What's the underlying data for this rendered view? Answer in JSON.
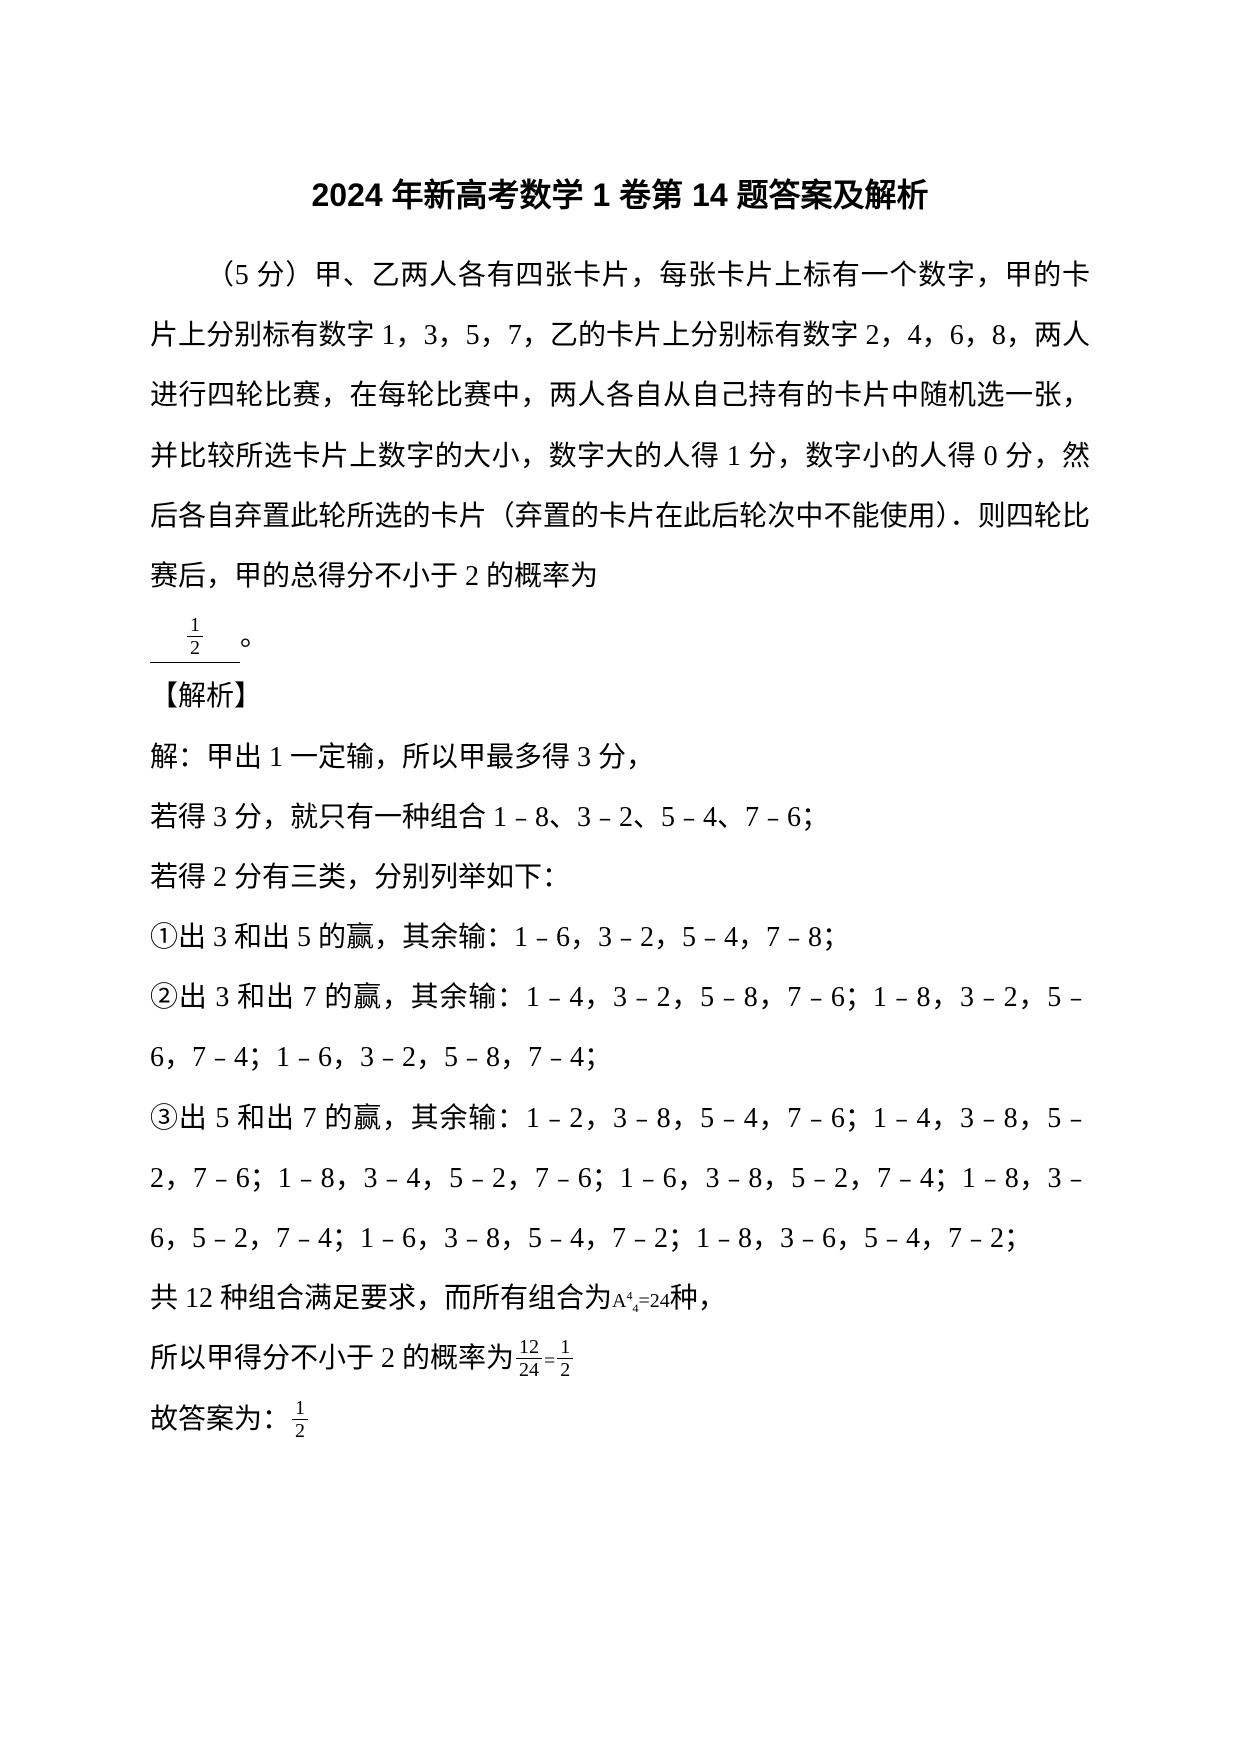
{
  "title": "2024 年新高考数学 1 卷第 14 题答案及解析",
  "question": {
    "prefix": "（5 分）甲、乙两人各有四张卡片，每张卡片上标有一个数字，甲的卡片上分别标有数字 1，3，5，7，乙的卡片上分别标有数字 2，4，6，8，两人进行四轮比赛，在每轮比赛中，两人各自从自己持有的卡片中随机选一张，并比较所选卡片上数字的大小，数字大的人得 1 分，数字小的人得 0 分，然后各自弃置此轮所选的卡片（弃置的卡片在此后轮次中不能使用）．则四轮比赛后，甲的总得分不小于 2 的概率为",
    "answer_frac_num": "1",
    "answer_frac_den": "2",
    "suffix": "。"
  },
  "analysis_label": "【解析】",
  "lines": {
    "l1": "解：甲出 1 一定输，所以甲最多得 3 分，",
    "l2": "若得 3 分，就只有一种组合 1﹣8、3﹣2、5﹣4、7﹣6；",
    "l3": "若得 2 分有三类，分别列举如下：",
    "l4": "①出 3 和出 5 的赢，其余输：1﹣6，3﹣2，5﹣4，7﹣8；",
    "l5": "②出 3 和出 7 的赢，其余输：1﹣4，3﹣2，5﹣8，7﹣6；1﹣8，3﹣2，5﹣6，7﹣4；1﹣6，3﹣2，5﹣8，7﹣4；",
    "l6": "③出 5 和出 7 的赢，其余输：1﹣2，3﹣8，5﹣4，7﹣6；1﹣4，3﹣8，5﹣2，7﹣6；1﹣8，3﹣4，5﹣2，7﹣6；1﹣6，3﹣8，5﹣2，7﹣4；1﹣8，3﹣6，5﹣2，7﹣4；1﹣6，3﹣8，5﹣4，7﹣2；1﹣8，3﹣6，5﹣4，7﹣2；",
    "l7_prefix": "共 12 种组合满足要求，而所有组合为",
    "l7_perm_base": "A",
    "l7_perm_sub": "4",
    "l7_perm_sup": "4",
    "l7_eq": "=24",
    "l7_suffix": "种，",
    "l8_prefix": "所以甲得分不小于 2 的概率为",
    "l8_f1_num": "12",
    "l8_f1_den": "24",
    "l8_eq": "=",
    "l8_f2_num": "1",
    "l8_f2_den": "2",
    "l9_prefix": "故答案为：",
    "l9_num": "1",
    "l9_den": "2"
  }
}
